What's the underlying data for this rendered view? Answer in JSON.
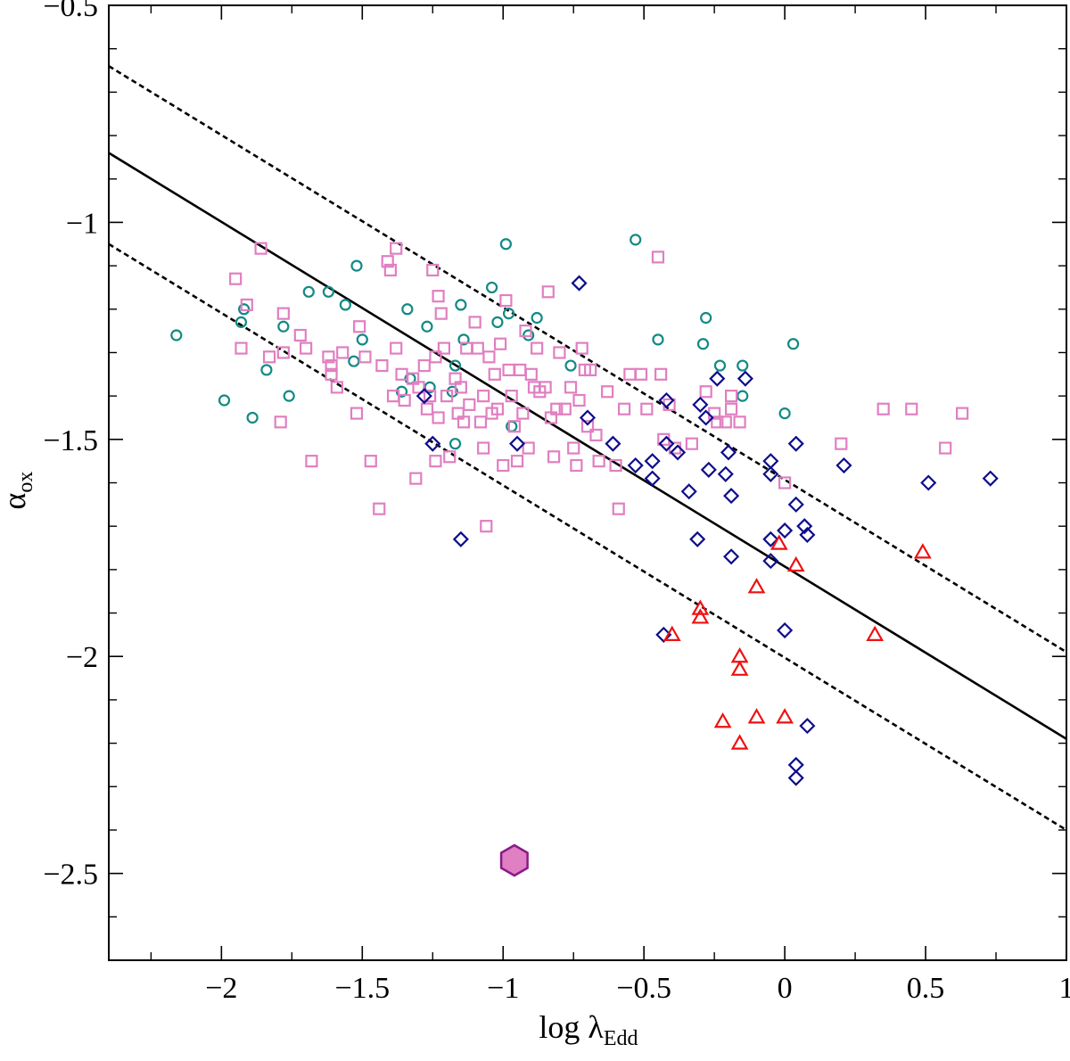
{
  "chart_data": {
    "type": "scatter",
    "title": "",
    "xlabel": {
      "main": "log λ",
      "sub": "Edd"
    },
    "ylabel": {
      "main": "α",
      "sub": "ox"
    },
    "xlim": [
      -2.4,
      1.0
    ],
    "ylim": [
      -2.7,
      -0.5
    ],
    "xticks": [
      -2,
      -1.5,
      -1,
      -0.5,
      0,
      0.5,
      1
    ],
    "xtick_labels": [
      "−2",
      "−1.5",
      "−1",
      "−0.5",
      "0",
      "0.5",
      "1"
    ],
    "yticks": [
      -2.5,
      -2,
      -1.5,
      -1,
      -0.5
    ],
    "ytick_labels": [
      "−2.5",
      "−2",
      "−1.5",
      "−1",
      "−0.5"
    ],
    "grid": false,
    "lines": [
      {
        "name": "regression",
        "style": "solid",
        "x": [
          -2.4,
          1.0
        ],
        "y": [
          -0.84,
          -2.19
        ]
      },
      {
        "name": "upper-bound",
        "style": "dashed",
        "x": [
          -2.4,
          1.0
        ],
        "y": [
          -0.64,
          -1.99
        ]
      },
      {
        "name": "lower-bound",
        "style": "dashed",
        "x": [
          -2.4,
          1.0
        ],
        "y": [
          -1.05,
          -2.4
        ]
      }
    ],
    "series": [
      {
        "name": "circles",
        "marker": "circle",
        "color": "#118a85",
        "points": [
          [
            -2.16,
            -1.26
          ],
          [
            -1.99,
            -1.41
          ],
          [
            -1.93,
            -1.23
          ],
          [
            -1.92,
            -1.2
          ],
          [
            -1.89,
            -1.45
          ],
          [
            -1.84,
            -1.34
          ],
          [
            -1.78,
            -1.24
          ],
          [
            -1.76,
            -1.4
          ],
          [
            -1.69,
            -1.16
          ],
          [
            -1.62,
            -1.16
          ],
          [
            -1.56,
            -1.19
          ],
          [
            -1.53,
            -1.32
          ],
          [
            -1.52,
            -1.1
          ],
          [
            -1.5,
            -1.27
          ],
          [
            -1.36,
            -1.39
          ],
          [
            -1.34,
            -1.2
          ],
          [
            -1.33,
            -1.36
          ],
          [
            -1.27,
            -1.24
          ],
          [
            -1.26,
            -1.38
          ],
          [
            -1.18,
            -1.39
          ],
          [
            -1.17,
            -1.33
          ],
          [
            -1.17,
            -1.51
          ],
          [
            -1.15,
            -1.19
          ],
          [
            -1.14,
            -1.27
          ],
          [
            -1.04,
            -1.15
          ],
          [
            -1.02,
            -1.23
          ],
          [
            -0.99,
            -1.05
          ],
          [
            -0.98,
            -1.21
          ],
          [
            -0.97,
            -1.47
          ],
          [
            -0.91,
            -1.26
          ],
          [
            -0.88,
            -1.22
          ],
          [
            -0.76,
            -1.33
          ],
          [
            -0.53,
            -1.04
          ],
          [
            -0.45,
            -1.27
          ],
          [
            -0.29,
            -1.28
          ],
          [
            -0.28,
            -1.22
          ],
          [
            -0.23,
            -1.33
          ],
          [
            -0.15,
            -1.33
          ],
          [
            -0.15,
            -1.4
          ],
          [
            0.0,
            -1.44
          ],
          [
            0.03,
            -1.28
          ]
        ]
      },
      {
        "name": "squares",
        "marker": "square",
        "color": "#e07fc1",
        "points": [
          [
            -1.95,
            -1.13
          ],
          [
            -1.93,
            -1.29
          ],
          [
            -1.91,
            -1.19
          ],
          [
            -1.86,
            -1.06
          ],
          [
            -1.83,
            -1.31
          ],
          [
            -1.79,
            -1.46
          ],
          [
            -1.78,
            -1.21
          ],
          [
            -1.78,
            -1.3
          ],
          [
            -1.72,
            -1.26
          ],
          [
            -1.7,
            -1.29
          ],
          [
            -1.68,
            -1.55
          ],
          [
            -1.62,
            -1.31
          ],
          [
            -1.61,
            -1.33
          ],
          [
            -1.61,
            -1.35
          ],
          [
            -1.59,
            -1.38
          ],
          [
            -1.57,
            -1.3
          ],
          [
            -1.52,
            -1.44
          ],
          [
            -1.51,
            -1.24
          ],
          [
            -1.49,
            -1.31
          ],
          [
            -1.47,
            -1.55
          ],
          [
            -1.44,
            -1.66
          ],
          [
            -1.43,
            -1.33
          ],
          [
            -1.41,
            -1.09
          ],
          [
            -1.4,
            -1.11
          ],
          [
            -1.39,
            -1.4
          ],
          [
            -1.38,
            -1.06
          ],
          [
            -1.38,
            -1.29
          ],
          [
            -1.36,
            -1.35
          ],
          [
            -1.35,
            -1.41
          ],
          [
            -1.32,
            -1.36
          ],
          [
            -1.31,
            -1.59
          ],
          [
            -1.3,
            -1.38
          ],
          [
            -1.28,
            -1.33
          ],
          [
            -1.27,
            -1.43
          ],
          [
            -1.26,
            -1.4
          ],
          [
            -1.25,
            -1.11
          ],
          [
            -1.24,
            -1.31
          ],
          [
            -1.24,
            -1.55
          ],
          [
            -1.23,
            -1.45
          ],
          [
            -1.23,
            -1.17
          ],
          [
            -1.22,
            -1.21
          ],
          [
            -1.21,
            -1.29
          ],
          [
            -1.2,
            -1.4
          ],
          [
            -1.19,
            -1.54
          ],
          [
            -1.17,
            -1.36
          ],
          [
            -1.16,
            -1.44
          ],
          [
            -1.15,
            -1.38
          ],
          [
            -1.14,
            -1.46
          ],
          [
            -1.13,
            -1.29
          ],
          [
            -1.12,
            -1.42
          ],
          [
            -1.1,
            -1.23
          ],
          [
            -1.09,
            -1.29
          ],
          [
            -1.08,
            -1.46
          ],
          [
            -1.07,
            -1.4
          ],
          [
            -1.07,
            -1.52
          ],
          [
            -1.06,
            -1.7
          ],
          [
            -1.05,
            -1.31
          ],
          [
            -1.04,
            -1.44
          ],
          [
            -1.03,
            -1.35
          ],
          [
            -1.02,
            -1.43
          ],
          [
            -1.01,
            -1.28
          ],
          [
            -1.0,
            -1.56
          ],
          [
            -0.99,
            -1.18
          ],
          [
            -0.98,
            -1.34
          ],
          [
            -0.97,
            -1.4
          ],
          [
            -0.96,
            -1.47
          ],
          [
            -0.95,
            -1.55
          ],
          [
            -0.94,
            -1.34
          ],
          [
            -0.93,
            -1.44
          ],
          [
            -0.92,
            -1.25
          ],
          [
            -0.91,
            -1.52
          ],
          [
            -0.9,
            -1.35
          ],
          [
            -0.89,
            -1.38
          ],
          [
            -0.88,
            -1.29
          ],
          [
            -0.87,
            -1.39
          ],
          [
            -0.85,
            -1.38
          ],
          [
            -0.84,
            -1.16
          ],
          [
            -0.83,
            -1.45
          ],
          [
            -0.82,
            -1.54
          ],
          [
            -0.81,
            -1.43
          ],
          [
            -0.8,
            -1.3
          ],
          [
            -0.78,
            -1.43
          ],
          [
            -0.76,
            -1.38
          ],
          [
            -0.75,
            -1.52
          ],
          [
            -0.74,
            -1.56
          ],
          [
            -0.73,
            -1.41
          ],
          [
            -0.72,
            -1.29
          ],
          [
            -0.71,
            -1.34
          ],
          [
            -0.7,
            -1.47
          ],
          [
            -0.69,
            -1.34
          ],
          [
            -0.67,
            -1.49
          ],
          [
            -0.66,
            -1.55
          ],
          [
            -0.63,
            -1.39
          ],
          [
            -0.6,
            -1.56
          ],
          [
            -0.59,
            -1.66
          ],
          [
            -0.57,
            -1.43
          ],
          [
            -0.55,
            -1.35
          ],
          [
            -0.51,
            -1.35
          ],
          [
            -0.49,
            -1.43
          ],
          [
            -0.45,
            -1.08
          ],
          [
            -0.44,
            -1.35
          ],
          [
            -0.43,
            -1.5
          ],
          [
            -0.41,
            -1.42
          ],
          [
            -0.39,
            -1.52
          ],
          [
            -0.33,
            -1.51
          ],
          [
            -0.28,
            -1.39
          ],
          [
            -0.25,
            -1.44
          ],
          [
            -0.24,
            -1.46
          ],
          [
            -0.21,
            -1.46
          ],
          [
            -0.19,
            -1.4
          ],
          [
            -0.19,
            -1.43
          ],
          [
            -0.16,
            -1.46
          ],
          [
            0.0,
            -1.6
          ],
          [
            0.2,
            -1.51
          ],
          [
            0.35,
            -1.43
          ],
          [
            0.45,
            -1.43
          ],
          [
            0.57,
            -1.52
          ],
          [
            0.63,
            -1.44
          ]
        ]
      },
      {
        "name": "diamonds",
        "marker": "diamond",
        "color": "#0d0d8c",
        "points": [
          [
            -1.28,
            -1.4
          ],
          [
            -1.25,
            -1.51
          ],
          [
            -1.15,
            -1.73
          ],
          [
            -0.95,
            -1.51
          ],
          [
            -0.73,
            -1.14
          ],
          [
            -0.7,
            -1.45
          ],
          [
            -0.61,
            -1.51
          ],
          [
            -0.53,
            -1.56
          ],
          [
            -0.47,
            -1.59
          ],
          [
            -0.47,
            -1.55
          ],
          [
            -0.43,
            -1.95
          ],
          [
            -0.42,
            -1.41
          ],
          [
            -0.42,
            -1.51
          ],
          [
            -0.38,
            -1.53
          ],
          [
            -0.34,
            -1.62
          ],
          [
            -0.31,
            -1.73
          ],
          [
            -0.3,
            -1.42
          ],
          [
            -0.28,
            -1.45
          ],
          [
            -0.27,
            -1.57
          ],
          [
            -0.24,
            -1.36
          ],
          [
            -0.21,
            -1.58
          ],
          [
            -0.2,
            -1.53
          ],
          [
            -0.19,
            -1.63
          ],
          [
            -0.19,
            -1.77
          ],
          [
            -0.14,
            -1.36
          ],
          [
            -0.05,
            -1.58
          ],
          [
            -0.05,
            -1.55
          ],
          [
            -0.05,
            -1.73
          ],
          [
            -0.05,
            -1.78
          ],
          [
            0.0,
            -1.71
          ],
          [
            0.0,
            -1.94
          ],
          [
            0.04,
            -1.51
          ],
          [
            0.04,
            -1.65
          ],
          [
            0.04,
            -2.25
          ],
          [
            0.04,
            -2.28
          ],
          [
            0.07,
            -1.7
          ],
          [
            0.08,
            -1.72
          ],
          [
            0.08,
            -2.16
          ],
          [
            0.21,
            -1.56
          ],
          [
            0.51,
            -1.6
          ],
          [
            0.73,
            -1.59
          ]
        ]
      },
      {
        "name": "triangles",
        "marker": "triangle",
        "color": "#ee1111",
        "points": [
          [
            -0.4,
            -1.95
          ],
          [
            -0.3,
            -1.89
          ],
          [
            -0.3,
            -1.91
          ],
          [
            -0.22,
            -2.15
          ],
          [
            -0.16,
            -2.0
          ],
          [
            -0.16,
            -2.03
          ],
          [
            -0.16,
            -2.2
          ],
          [
            -0.1,
            -1.84
          ],
          [
            -0.1,
            -2.14
          ],
          [
            -0.02,
            -1.74
          ],
          [
            0.0,
            -2.14
          ],
          [
            0.04,
            -1.79
          ],
          [
            0.32,
            -1.95
          ],
          [
            0.49,
            -1.76
          ]
        ]
      },
      {
        "name": "highlight",
        "marker": "hexagon",
        "color": "#e07fc1",
        "edge_color": "#8a1a8a",
        "points": [
          [
            -0.96,
            -2.47
          ]
        ]
      }
    ]
  }
}
